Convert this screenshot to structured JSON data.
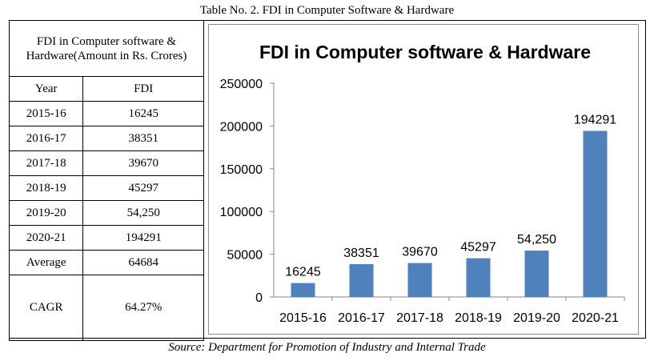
{
  "caption": "Table No. 2. FDI in Computer Software & Hardware",
  "source": "Source: Department for Promotion of Industry and Internal Trade",
  "table": {
    "header": "FDI in Computer software & Hardware(Amount in Rs. Crores)",
    "col_year": "Year",
    "col_fdi": "FDI",
    "rows": [
      {
        "year": "2015-16",
        "fdi": "16245"
      },
      {
        "year": "2016-17",
        "fdi": "38351"
      },
      {
        "year": "2017-18",
        "fdi": "39670"
      },
      {
        "year": "2018-19",
        "fdi": "45297"
      },
      {
        "year": "2019-20",
        "fdi": "54,250"
      },
      {
        "year": "2020-21",
        "fdi": "194291"
      }
    ],
    "average_label": "Average",
    "average_value": "64684",
    "cagr_label": "CAGR",
    "cagr_value": "64.27%"
  },
  "chart_data": {
    "type": "bar",
    "title": "FDI in Computer software & Hardware",
    "categories": [
      "2015-16",
      "2016-17",
      "2017-18",
      "2018-19",
      "2019-20",
      "2020-21"
    ],
    "values": [
      16245,
      38351,
      39670,
      45297,
      54250,
      194291
    ],
    "data_labels": [
      "16245",
      "38351",
      "39670",
      "45297",
      "54,250",
      "194291"
    ],
    "ylim": [
      0,
      250000
    ],
    "yticks": [
      0,
      50000,
      100000,
      150000,
      200000,
      250000
    ],
    "xlabel": "",
    "ylabel": "",
    "bar_color": "#4f81bd",
    "grid": false,
    "legend": "none"
  }
}
